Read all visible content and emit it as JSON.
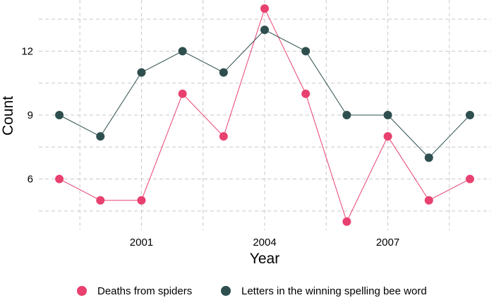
{
  "chart_data": {
    "type": "line",
    "title": "",
    "xlabel": "Year",
    "ylabel": "Count",
    "x": [
      1999,
      2000,
      2001,
      2002,
      2003,
      2004,
      2005,
      2006,
      2007,
      2008,
      2009
    ],
    "xlim": [
      1998.5,
      2009.5
    ],
    "ylim": [
      3.6,
      14.4
    ],
    "x_ticks": [
      2001,
      2004,
      2007
    ],
    "y_ticks": [
      6,
      9,
      12
    ],
    "grid": true,
    "legend_position": "bottom",
    "series": [
      {
        "name": "Deaths from spiders",
        "color": "#e8416f",
        "values": [
          6,
          5,
          5,
          10,
          8,
          14,
          10,
          4,
          8,
          5,
          6
        ]
      },
      {
        "name": "Letters in the winning spelling bee word",
        "color": "#2f4f4f",
        "values": [
          9,
          8,
          11,
          12,
          11,
          13,
          12,
          9,
          9,
          7,
          9
        ]
      }
    ]
  }
}
